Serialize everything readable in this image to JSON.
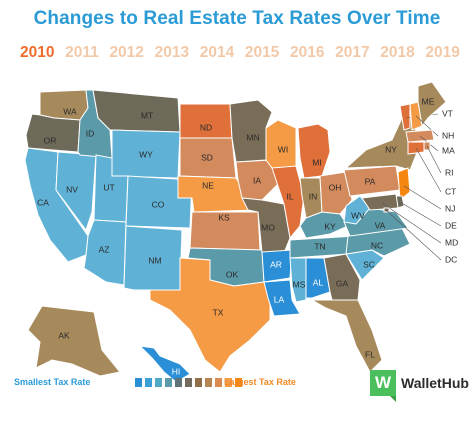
{
  "title": "Changes to Real Estate Tax Rates Over Time",
  "years": [
    "2010",
    "2011",
    "2012",
    "2013",
    "2014",
    "2015",
    "2016",
    "2017",
    "2018",
    "2019"
  ],
  "active_year": "2010",
  "legend": {
    "small_label": "Smallest Tax Rate",
    "large_label": "Largest Tax Rate",
    "scale_colors": [
      "#2a8fd6",
      "#3aa0d6",
      "#52a9c4",
      "#5b9aa8",
      "#5f7378",
      "#726a5c",
      "#8f6e48",
      "#b78554",
      "#d98c52",
      "#f59a45",
      "#f5860f"
    ]
  },
  "brand": {
    "logo": "W",
    "name": "WalletHub"
  },
  "map_data": {
    "type": "choropleth",
    "states": [
      {
        "code": "WA",
        "color": "#a68a5c"
      },
      {
        "code": "OR",
        "color": "#6e6a5a"
      },
      {
        "code": "CA",
        "color": "#5fb2d5"
      },
      {
        "code": "NV",
        "color": "#5fb2d5"
      },
      {
        "code": "ID",
        "color": "#5b9aa8"
      },
      {
        "code": "MT",
        "color": "#6e6a5a"
      },
      {
        "code": "WY",
        "color": "#5fb2d5"
      },
      {
        "code": "UT",
        "color": "#5fb2d5"
      },
      {
        "code": "AZ",
        "color": "#5fb2d5"
      },
      {
        "code": "CO",
        "color": "#5fb2d5"
      },
      {
        "code": "NM",
        "color": "#5fb2d5"
      },
      {
        "code": "ND",
        "color": "#e0703a"
      },
      {
        "code": "SD",
        "color": "#d38a5c"
      },
      {
        "code": "NE",
        "color": "#f59a45"
      },
      {
        "code": "KS",
        "color": "#d38a5c"
      },
      {
        "code": "OK",
        "color": "#5b9aa8"
      },
      {
        "code": "TX",
        "color": "#f59a45"
      },
      {
        "code": "MN",
        "color": "#7a6d58"
      },
      {
        "code": "IA",
        "color": "#d38a5c"
      },
      {
        "code": "MO",
        "color": "#7a6d58"
      },
      {
        "code": "AR",
        "color": "#2a8fd6"
      },
      {
        "code": "LA",
        "color": "#2a8fd6"
      },
      {
        "code": "WI",
        "color": "#f59a45"
      },
      {
        "code": "IL",
        "color": "#e0703a"
      },
      {
        "code": "MI",
        "color": "#e0703a"
      },
      {
        "code": "IN",
        "color": "#a68a5c"
      },
      {
        "code": "OH",
        "color": "#d38a5c"
      },
      {
        "code": "KY",
        "color": "#5b9aa8"
      },
      {
        "code": "TN",
        "color": "#5b9aa8"
      },
      {
        "code": "MS",
        "color": "#5fb2d5"
      },
      {
        "code": "AL",
        "color": "#2a8fd6"
      },
      {
        "code": "GA",
        "color": "#7a6d58"
      },
      {
        "code": "FL",
        "color": "#a68a5c"
      },
      {
        "code": "SC",
        "color": "#5fb2d5"
      },
      {
        "code": "NC",
        "color": "#5b9aa8"
      },
      {
        "code": "VA",
        "color": "#5b9aa8"
      },
      {
        "code": "WV",
        "color": "#5fb2d5"
      },
      {
        "code": "PA",
        "color": "#d38a5c"
      },
      {
        "code": "NY",
        "color": "#a68a5c"
      },
      {
        "code": "VT",
        "color": "#e0703a"
      },
      {
        "code": "ME",
        "color": "#a68a5c"
      },
      {
        "code": "NH",
        "color": "#f59a45"
      },
      {
        "code": "MA",
        "color": "#d38a5c"
      },
      {
        "code": "RI",
        "color": "#d38a5c"
      },
      {
        "code": "CT",
        "color": "#e0703a"
      },
      {
        "code": "NJ",
        "color": "#f5860f"
      },
      {
        "code": "DE",
        "color": "#6e6a5a"
      },
      {
        "code": "MD",
        "color": "#7a6d58"
      },
      {
        "code": "DC",
        "color": "#7a6d58"
      },
      {
        "code": "AK",
        "color": "#a68a5c"
      },
      {
        "code": "HI",
        "color": "#2a8fd6"
      }
    ]
  }
}
